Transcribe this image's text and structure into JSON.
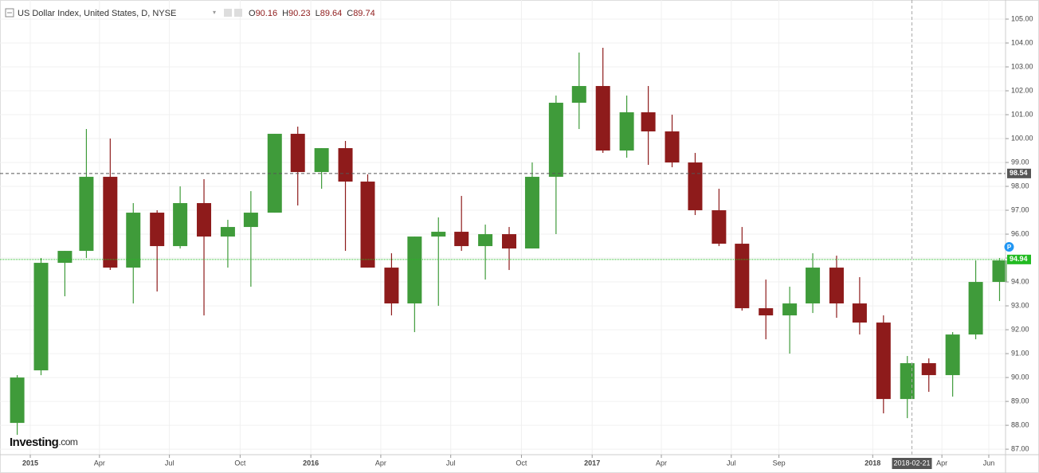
{
  "chart_data": {
    "type": "candlestick",
    "title": "US Dollar Index, United States, D, NYSE",
    "ohlc_labels": [
      "O",
      "H",
      "L",
      "C"
    ],
    "ohlc_values": [
      90.16,
      90.23,
      89.64,
      89.74
    ],
    "logo": [
      "Investing",
      ".com"
    ],
    "up_color": "#3f9b3a",
    "down_color": "#8e1b1b",
    "x": [
      "2014-12",
      "2015-01",
      "2015-02",
      "2015-03",
      "2015-04",
      "2015-05",
      "2015-06",
      "2015-07",
      "2015-08",
      "2015-09",
      "2015-10",
      "2015-11",
      "2015-12",
      "2016-01",
      "2016-02",
      "2016-03",
      "2016-04",
      "2016-05",
      "2016-06",
      "2016-07",
      "2016-08",
      "2016-09",
      "2016-10",
      "2016-11",
      "2016-12",
      "2017-01",
      "2017-02",
      "2017-03",
      "2017-04",
      "2017-05",
      "2017-06",
      "2017-07",
      "2017-08",
      "2017-09",
      "2017-10",
      "2017-11",
      "2017-12",
      "2018-01",
      "2018-02",
      "2018-03",
      "2018-04",
      "2018-05",
      "2018-06"
    ],
    "open": [
      88.1,
      90.3,
      94.8,
      95.3,
      98.4,
      94.6,
      96.9,
      95.5,
      97.3,
      95.9,
      96.3,
      96.9,
      100.2,
      98.6,
      99.6,
      98.2,
      94.6,
      93.1,
      95.9,
      96.1,
      95.5,
      96.0,
      95.4,
      98.4,
      101.5,
      102.2,
      99.5,
      101.1,
      100.3,
      99.0,
      97.0,
      95.6,
      92.9,
      92.6,
      93.1,
      94.6,
      93.1,
      92.3,
      89.1,
      90.6,
      90.1,
      91.8,
      94.0
    ],
    "high": [
      90.1,
      95.0,
      95.3,
      100.4,
      100.0,
      97.3,
      97.0,
      98.0,
      98.3,
      96.6,
      97.8,
      100.2,
      100.5,
      99.6,
      99.9,
      98.5,
      95.2,
      95.9,
      96.7,
      97.6,
      96.4,
      96.3,
      99.0,
      101.8,
      103.6,
      103.8,
      101.8,
      102.2,
      101.0,
      99.4,
      97.9,
      96.3,
      94.1,
      93.8,
      95.2,
      95.1,
      94.2,
      92.6,
      90.9,
      90.8,
      91.9,
      94.9,
      95.0
    ],
    "low": [
      87.6,
      90.1,
      93.4,
      95.0,
      94.5,
      93.1,
      93.6,
      95.4,
      92.6,
      94.6,
      93.8,
      96.9,
      97.2,
      97.9,
      95.3,
      94.6,
      92.6,
      91.9,
      93.0,
      95.3,
      94.1,
      94.5,
      95.4,
      96.0,
      100.4,
      99.4,
      99.2,
      98.9,
      98.8,
      96.8,
      95.5,
      92.8,
      91.6,
      91.0,
      92.7,
      92.5,
      91.8,
      88.5,
      88.3,
      89.4,
      89.2,
      91.6,
      93.2
    ],
    "close": [
      90.0,
      94.8,
      95.3,
      98.4,
      94.6,
      96.9,
      95.5,
      97.3,
      95.9,
      96.3,
      96.9,
      100.2,
      98.6,
      99.6,
      98.2,
      94.6,
      93.1,
      95.9,
      96.1,
      95.5,
      96.0,
      95.4,
      98.4,
      101.5,
      102.2,
      99.5,
      101.1,
      100.3,
      99.0,
      97.0,
      95.6,
      92.9,
      92.6,
      93.1,
      94.6,
      93.1,
      92.3,
      89.1,
      90.6,
      90.1,
      91.8,
      94.0,
      94.9
    ],
    "ylim": [
      86.77,
      105.8
    ],
    "yticks": [
      {
        "value": 87,
        "label": "87.00"
      },
      {
        "value": 88,
        "label": "88.00"
      },
      {
        "value": 89,
        "label": "89.00"
      },
      {
        "value": 90,
        "label": "90.00"
      },
      {
        "value": 91,
        "label": "91.00"
      },
      {
        "value": 92,
        "label": "92.00"
      },
      {
        "value": 93,
        "label": "93.00"
      },
      {
        "value": 94,
        "label": "94.00"
      },
      {
        "value": 95,
        "label": "95.00"
      },
      {
        "value": 96,
        "label": "96.00"
      },
      {
        "value": 97,
        "label": "97.00"
      },
      {
        "value": 98,
        "label": "98.00"
      },
      {
        "value": 99,
        "label": "99.00"
      },
      {
        "value": 100,
        "label": "100.00"
      },
      {
        "value": 101,
        "label": "101.00"
      },
      {
        "value": 102,
        "label": "102.00"
      },
      {
        "value": 103,
        "label": "103.00"
      },
      {
        "value": 104,
        "label": "104.00"
      },
      {
        "value": 105,
        "label": "105.00"
      }
    ],
    "xticks": [
      {
        "value": "2015-01-01",
        "label": "2015"
      },
      {
        "value": "2015-04-01",
        "label": "Apr"
      },
      {
        "value": "2015-07-01",
        "label": "Jul"
      },
      {
        "value": "2015-10-01",
        "label": "Oct"
      },
      {
        "value": "2016-01-01",
        "label": "2016"
      },
      {
        "value": "2016-04-01",
        "label": "Apr"
      },
      {
        "value": "2016-07-01",
        "label": "Jul"
      },
      {
        "value": "2016-10-01",
        "label": "Oct"
      },
      {
        "value": "2017-01-01",
        "label": "2017"
      },
      {
        "value": "2017-04-01",
        "label": "Apr"
      },
      {
        "value": "2017-07-01",
        "label": "Jul"
      },
      {
        "value": "2017-09-01",
        "label": "Sep"
      },
      {
        "value": "2018-01-01",
        "label": "2018"
      },
      {
        "value": "2018-04-01",
        "label": "Apr"
      },
      {
        "value": "2018-06-01",
        "label": "Jun"
      }
    ],
    "grid": true,
    "price_lines": [
      {
        "value": 98.54,
        "color": "#555555"
      },
      {
        "value": 94.94,
        "color": "#22bb22"
      }
    ],
    "crosshair_x": "2018-02-21",
    "badge": "P"
  }
}
